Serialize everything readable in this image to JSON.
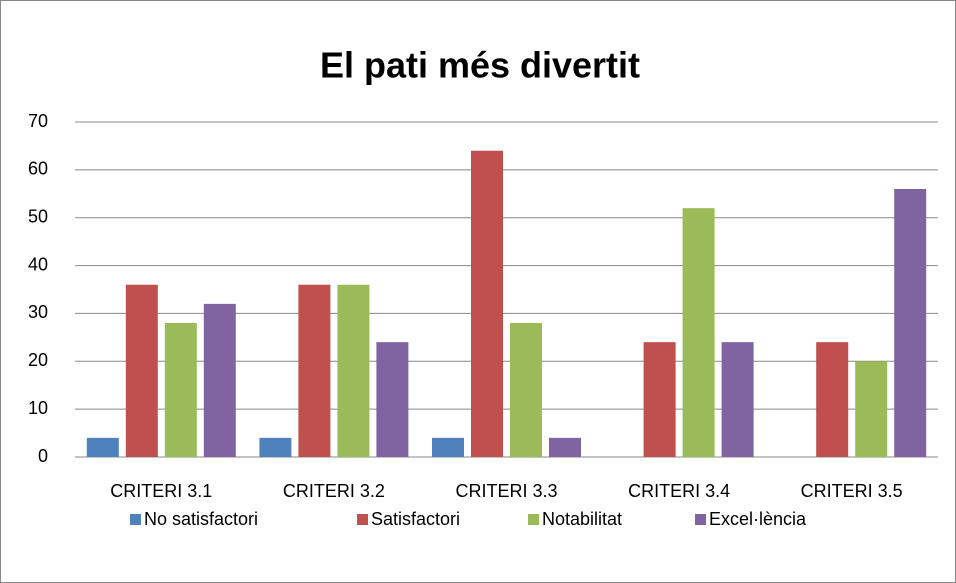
{
  "chart_data": {
    "type": "bar",
    "title": "El pati més divertit",
    "categories": [
      "CRITERI 3.1",
      "CRITERI 3.2",
      "CRITERI 3.3",
      "CRITERI 3.4",
      "CRITERI 3.5"
    ],
    "series": [
      {
        "name": "No satisfactori",
        "color": "#4f81bd",
        "values": [
          4,
          4,
          4,
          0,
          0
        ]
      },
      {
        "name": "Satisfactori",
        "color": "#c0504d",
        "values": [
          36,
          36,
          64,
          24,
          24
        ]
      },
      {
        "name": "Notabilitat",
        "color": "#9bbb59",
        "values": [
          28,
          36,
          28,
          52,
          20
        ]
      },
      {
        "name": "Excel·lència",
        "color": "#8064a2",
        "values": [
          32,
          24,
          4,
          24,
          56
        ]
      }
    ],
    "ylim": [
      0,
      70
    ],
    "yticks": [
      0,
      10,
      20,
      30,
      40,
      50,
      60,
      70
    ],
    "grid": true,
    "legend": "bottom"
  }
}
